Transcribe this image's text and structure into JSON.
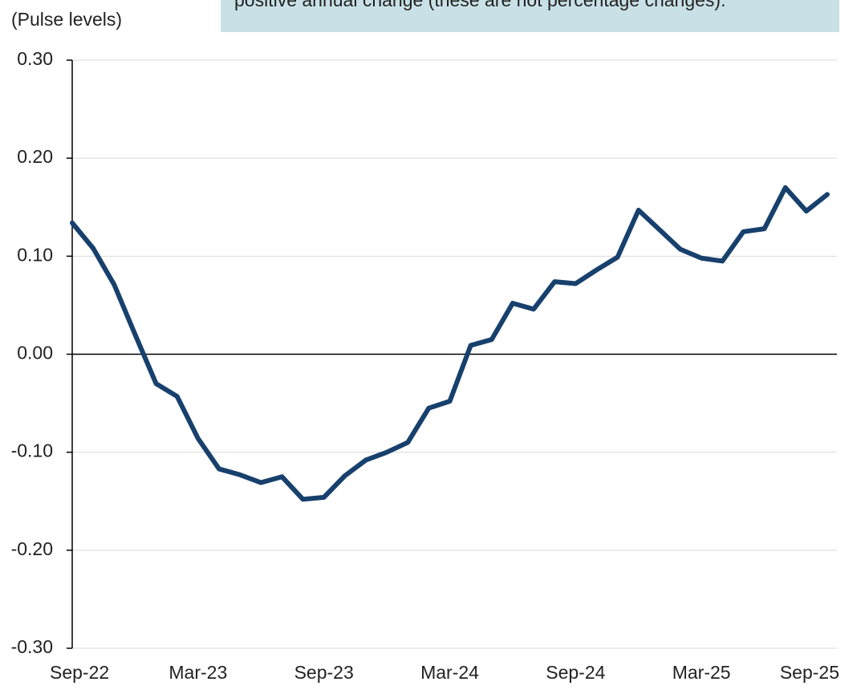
{
  "chart_data": {
    "type": "line",
    "y_axis_label": "(Pulse levels)",
    "note": "positive annual change (these are not percentage changes).",
    "categories": [
      "Sep-22",
      null,
      null,
      null,
      null,
      null,
      "Mar-23",
      null,
      null,
      null,
      null,
      null,
      "Sep-23",
      null,
      null,
      null,
      null,
      null,
      "Mar-24",
      null,
      null,
      null,
      null,
      null,
      "Sep-24",
      null,
      null,
      null,
      null,
      null,
      "Mar-25",
      null,
      null,
      null,
      null,
      null,
      "Sep-25"
    ],
    "series": [
      {
        "color": "#17406d",
        "values": [
          0.134,
          0.108,
          0.071,
          0.02,
          -0.03,
          -0.043,
          -0.086,
          -0.117,
          -0.123,
          -0.131,
          -0.125,
          -0.148,
          -0.146,
          -0.124,
          -0.108,
          -0.1,
          -0.09,
          -0.055,
          -0.048,
          0.009,
          0.015,
          0.052,
          0.046,
          0.074,
          0.072,
          0.086,
          0.099,
          0.147,
          0.127,
          0.107,
          0.098,
          0.095,
          0.125,
          0.128,
          0.17,
          0.146,
          0.163
        ]
      }
    ],
    "ylim": [
      -0.3,
      0.3
    ],
    "yticks": [
      {
        "value": -0.3,
        "label": "-0.30"
      },
      {
        "value": -0.2,
        "label": "-0.20"
      },
      {
        "value": -0.1,
        "label": "-0.10"
      },
      {
        "value": 0,
        "label": "0.00"
      },
      {
        "value": 0.1,
        "label": "0.10"
      },
      {
        "value": 0.2,
        "label": "0.20"
      },
      {
        "value": 0.3,
        "label": "0.30"
      }
    ],
    "grid": true
  }
}
